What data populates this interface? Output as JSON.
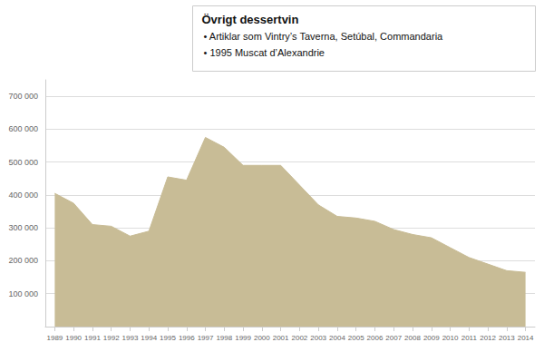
{
  "chart_data": {
    "type": "area",
    "x": [
      1989,
      1990,
      1991,
      1992,
      1993,
      1994,
      1995,
      1996,
      1997,
      1998,
      1999,
      2000,
      2001,
      2002,
      2003,
      2004,
      2005,
      2006,
      2007,
      2008,
      2009,
      2010,
      2011,
      2012,
      2013,
      2014
    ],
    "values": [
      405000,
      375000,
      310000,
      305000,
      275000,
      290000,
      455000,
      445000,
      575000,
      545000,
      490000,
      490000,
      490000,
      430000,
      370000,
      335000,
      330000,
      320000,
      295000,
      280000,
      270000,
      240000,
      210000,
      190000,
      170000,
      165000
    ],
    "color": "#C8BC96",
    "xlim": [
      1988.5,
      2014.5
    ],
    "xticks": [
      1989,
      1990,
      1991,
      1992,
      1993,
      1994,
      1995,
      1996,
      1997,
      1998,
      1999,
      2000,
      2001,
      2002,
      2003,
      2004,
      2005,
      2006,
      2007,
      2008,
      2009,
      2010,
      2011,
      2012,
      2013,
      2014
    ],
    "ylim": [
      0,
      750000
    ],
    "yticks": [
      {
        "value": 0,
        "label": ""
      },
      {
        "value": 100000,
        "label": "100 000"
      },
      {
        "value": 200000,
        "label": "200 000"
      },
      {
        "value": 300000,
        "label": "300 000"
      },
      {
        "value": 400000,
        "label": "400 000"
      },
      {
        "value": 500000,
        "label": "500 000"
      },
      {
        "value": 600000,
        "label": "600 000"
      },
      {
        "value": 700000,
        "label": "700 000"
      }
    ],
    "grid": true,
    "annotations": [
      "Övrigt dessertvin",
      "• Artiklar som Vintry’s Taverna, Setúbal, Commandaria",
      "• 1995 Muscat d’Alexandrie"
    ]
  }
}
